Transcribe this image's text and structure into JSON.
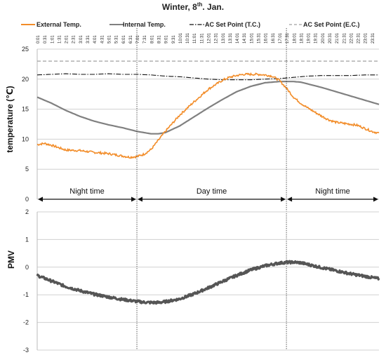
{
  "chart_data": [
    {
      "type": "line",
      "title": "Winter, 8th. Jan.",
      "title_main": "Winter, 8",
      "title_sup": "th",
      "title_rest": ". Jan.",
      "ylabel": "temperature (℃)",
      "xlabel": "",
      "ylim": [
        0,
        25
      ],
      "yticks": [
        "0",
        "5",
        "10",
        "15",
        "20",
        "25"
      ],
      "x_ticks": [
        "0:01",
        "0:31",
        "1:01",
        "1:31",
        "2:01",
        "2:31",
        "3:01",
        "3:31",
        "4:01",
        "4:31",
        "5:01",
        "5:31",
        "6:01",
        "6:31",
        "7:01",
        "7:31",
        "8:01",
        "8:31",
        "9:01",
        "9:31",
        "10:01",
        "10:31",
        "11:01",
        "11:31",
        "12:01",
        "12:31",
        "13:01",
        "13:31",
        "14:01",
        "14:31",
        "15:01",
        "15:31",
        "16:01",
        "16:31",
        "17:01",
        "17:31",
        "18:01",
        "18:31",
        "19:01",
        "19:31",
        "20:01",
        "20:31",
        "21:01",
        "21:31",
        "22:01",
        "22:31",
        "23:01",
        "23:31"
      ],
      "grid": true,
      "legend_position": "top",
      "series": [
        {
          "name": "External Temp.",
          "color": "#f28c28",
          "style": "solid",
          "x_hours": [
            0,
            0.5,
            1,
            2,
            3,
            4,
            5,
            6,
            6.5,
            7,
            7.5,
            8,
            9,
            10,
            11,
            12,
            13,
            13.5,
            14,
            14.5,
            15,
            15.5,
            16,
            16.5,
            17,
            17.5,
            18,
            18.5,
            19,
            19.5,
            20,
            20.5,
            21,
            22,
            22.5,
            23,
            23.5,
            24
          ],
          "values": [
            9.1,
            9.3,
            9.0,
            8.2,
            8.1,
            7.8,
            7.6,
            7.2,
            7.0,
            7.1,
            7.5,
            8.3,
            11.3,
            14.0,
            16.2,
            18.3,
            19.8,
            20.3,
            20.6,
            20.8,
            20.8,
            20.8,
            20.7,
            20.5,
            19.8,
            18.5,
            17.0,
            16.0,
            15.2,
            14.5,
            13.8,
            13.2,
            12.8,
            12.5,
            12.3,
            11.8,
            11.3,
            11.0
          ]
        },
        {
          "name": "Internal Temp.",
          "color": "#808080",
          "style": "solid",
          "x_hours": [
            0,
            1,
            2,
            3,
            4,
            5,
            6,
            7,
            7.5,
            8,
            8.5,
            9,
            10,
            11,
            12,
            13,
            14,
            15,
            16,
            17,
            17.5,
            18,
            18.5,
            19,
            20,
            21,
            22,
            23,
            24
          ],
          "values": [
            17.0,
            16.0,
            14.8,
            13.8,
            13.0,
            12.4,
            11.9,
            11.3,
            11.1,
            10.9,
            10.9,
            11.1,
            12.2,
            13.7,
            15.2,
            16.6,
            17.9,
            18.8,
            19.4,
            19.6,
            19.6,
            19.6,
            19.5,
            19.2,
            18.6,
            17.9,
            17.2,
            16.5,
            15.8
          ]
        },
        {
          "name": "AC Set Point (T.C.)",
          "color": "#111111",
          "style": "dash-dot",
          "x_hours": [
            0,
            1,
            2,
            3,
            4,
            5,
            6,
            7,
            8,
            9,
            10,
            11,
            12,
            13,
            14,
            15,
            16,
            17,
            18,
            19,
            20,
            21,
            22,
            23,
            24
          ],
          "values": [
            20.7,
            20.8,
            20.9,
            20.8,
            20.8,
            20.9,
            20.8,
            20.8,
            20.7,
            20.5,
            20.4,
            20.2,
            20.0,
            19.9,
            19.9,
            19.9,
            20.0,
            20.1,
            20.3,
            20.5,
            20.6,
            20.6,
            20.6,
            20.7,
            20.7
          ]
        },
        {
          "name": "AC Set Point (E.C.)",
          "color": "#a0a0a0",
          "style": "dashed",
          "x_hours": [
            0,
            24
          ],
          "values": [
            23.0,
            23.0
          ]
        }
      ],
      "dividers_hours": [
        7,
        17.5
      ],
      "periods": [
        "Night time",
        "Day time",
        "Night time"
      ]
    },
    {
      "type": "line",
      "ylabel": "PMV",
      "xlabel": "",
      "ylim": [
        -3,
        2
      ],
      "yticks": [
        "-3",
        "-2",
        "-1",
        "0",
        "1",
        "2"
      ],
      "grid": true,
      "series": [
        {
          "color": "#555555",
          "style": "thick-noisy",
          "x_hours": [
            0,
            1,
            2,
            3,
            4,
            5,
            6,
            7,
            7.5,
            8,
            8.5,
            9,
            10,
            11,
            12,
            13,
            14,
            15,
            16,
            17,
            17.5,
            18,
            18.5,
            19,
            20,
            21,
            22,
            23,
            24
          ],
          "values": [
            -0.3,
            -0.5,
            -0.7,
            -0.85,
            -0.98,
            -1.08,
            -1.17,
            -1.24,
            -1.27,
            -1.28,
            -1.28,
            -1.25,
            -1.15,
            -0.97,
            -0.75,
            -0.52,
            -0.3,
            -0.1,
            0.05,
            0.15,
            0.17,
            0.18,
            0.16,
            0.1,
            -0.02,
            -0.13,
            -0.24,
            -0.33,
            -0.42
          ]
        }
      ]
    }
  ]
}
